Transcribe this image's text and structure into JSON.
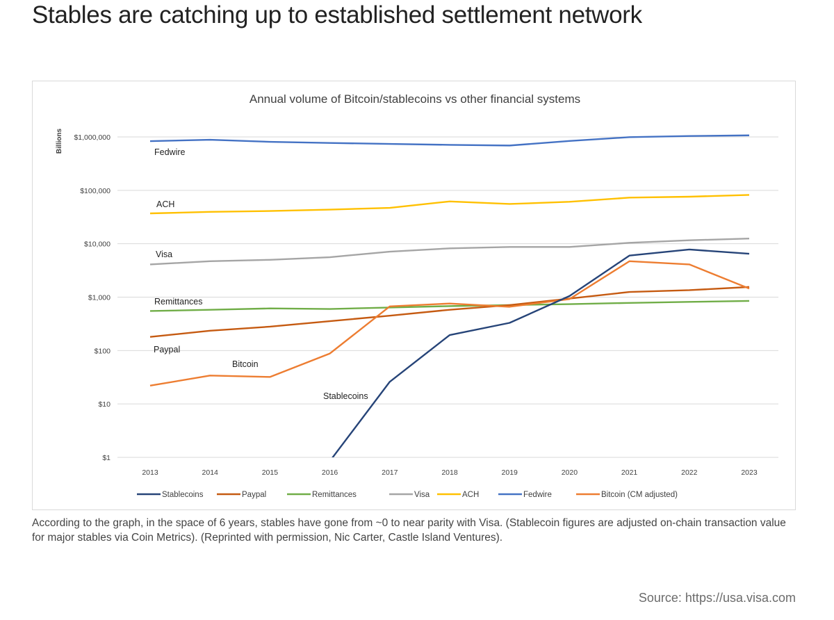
{
  "page": {
    "headline": "Stables are catching up to established settlement network",
    "caption": "According to the graph, in the space of 6 years, stables have gone from ~0 to near parity with Visa. (Stablecoin figures are adjusted on-chain transaction value for major stables via Coin Metrics). (Reprinted with permission, Nic Carter, Castle Island Ventures).",
    "source": "Source: https://usa.visa.com"
  },
  "chart_data": {
    "type": "line",
    "title": "Annual volume of Bitcoin/stablecoins vs other financial systems",
    "ylabel": "Billions",
    "xlabel": "",
    "y_scale": "log",
    "ylim": [
      1,
      1000000
    ],
    "y_ticks": [
      {
        "value": 1,
        "label": "$1"
      },
      {
        "value": 10,
        "label": "$10"
      },
      {
        "value": 100,
        "label": "$100"
      },
      {
        "value": 1000,
        "label": "$1,000"
      },
      {
        "value": 10000,
        "label": "$10,000"
      },
      {
        "value": 100000,
        "label": "$100,000"
      },
      {
        "value": 1000000,
        "label": "$1,000,000"
      }
    ],
    "x": [
      "2013",
      "2014",
      "2015",
      "2016",
      "2017",
      "2018",
      "2019",
      "2020",
      "2021",
      "2022",
      "2023"
    ],
    "grid": true,
    "legend_position": "bottom",
    "series": [
      {
        "name": "Fedwire",
        "color": "#4472c4",
        "values": [
          835000,
          885000,
          810000,
          770000,
          740000,
          710000,
          690000,
          840000,
          990000,
          1040000,
          1070000
        ]
      },
      {
        "name": "ACH",
        "color": "#ffc000",
        "values": [
          37000,
          39500,
          41000,
          43500,
          47000,
          62000,
          55500,
          61000,
          73000,
          76000,
          82000
        ]
      },
      {
        "name": "Visa",
        "color": "#a5a5a5",
        "values": [
          4100,
          4700,
          5000,
          5600,
          7100,
          8200,
          8700,
          8700,
          10400,
          11600,
          12500
        ]
      },
      {
        "name": "Remittances",
        "color": "#70ad47",
        "values": [
          550,
          580,
          615,
          600,
          640,
          680,
          710,
          740,
          780,
          815,
          850
        ]
      },
      {
        "name": "Paypal",
        "color": "#c55a11",
        "values": [
          180,
          235,
          280,
          355,
          450,
          580,
          710,
          940,
          1250,
          1350,
          1550
        ]
      },
      {
        "name": "Bitcoin (CM adjusted)",
        "color": "#ed7d31",
        "values": [
          22,
          34,
          32,
          88,
          670,
          760,
          660,
          920,
          4700,
          4100,
          1450
        ]
      },
      {
        "name": "Stablecoins",
        "color": "#264478",
        "values": [
          null,
          null,
          null,
          0.85,
          26,
          195,
          330,
          1050,
          6000,
          7800,
          6500
        ]
      }
    ],
    "annotations": [
      {
        "text": "Fedwire",
        "series": "Fedwire"
      },
      {
        "text": "ACH",
        "series": "ACH"
      },
      {
        "text": "Visa",
        "series": "Visa"
      },
      {
        "text": "Remittances",
        "series": "Remittances"
      },
      {
        "text": "Paypal",
        "series": "Paypal"
      },
      {
        "text": "Bitcoin",
        "series": "Bitcoin (CM adjusted)"
      },
      {
        "text": "Stablecoins",
        "series": "Stablecoins"
      }
    ],
    "legend_order": [
      "Stablecoins",
      "Paypal",
      "Remittances",
      "Visa",
      "ACH",
      "Fedwire",
      "Bitcoin (CM adjusted)"
    ]
  }
}
